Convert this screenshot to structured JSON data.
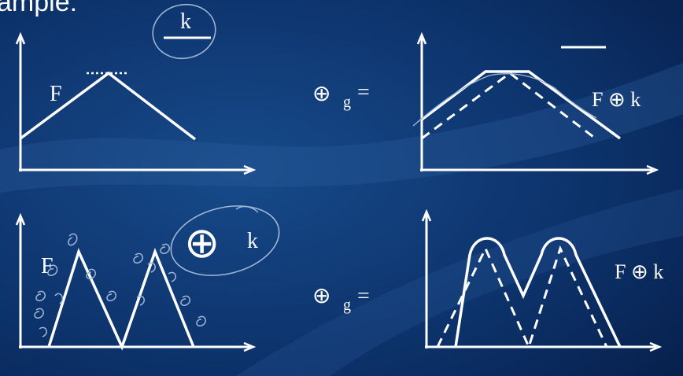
{
  "slide": {
    "title_fragment": "ample:",
    "colors": {
      "background": "#0a2a5c",
      "background_light": "#2f5a9a",
      "ink": "#ffffff",
      "handwriting": "#9fb6d6"
    }
  },
  "top_row": {
    "input_label": "F",
    "kernel_label": "k",
    "operator": "⊕",
    "operator_subscript": "g",
    "equals": "=",
    "result_label": "F ⊕ k"
  },
  "bottom_row": {
    "input_label": "F",
    "kernel_operator": "⊕",
    "kernel_label": "k",
    "operator": "⊕",
    "operator_subscript": "g",
    "equals": "=",
    "result_label": "F ⊕ k"
  }
}
